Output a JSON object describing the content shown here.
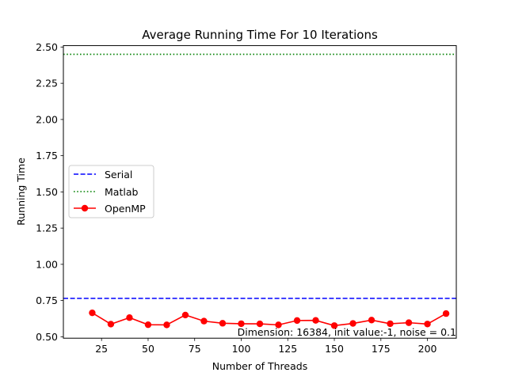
{
  "chart_data": {
    "type": "line",
    "title": "Average Running Time For 10 Iterations",
    "xlabel": "Number of Threads",
    "ylabel": "Running Time",
    "xlim": [
      4.5,
      215.5
    ],
    "ylim": [
      0.49,
      2.51
    ],
    "xticks": [
      25,
      50,
      75,
      100,
      125,
      150,
      175,
      200
    ],
    "xtick_labels": [
      "25",
      "50",
      "75",
      "100",
      "125",
      "150",
      "175",
      "200"
    ],
    "yticks": [
      0.5,
      0.75,
      1.0,
      1.25,
      1.5,
      1.75,
      2.0,
      2.25,
      2.5
    ],
    "ytick_labels": [
      "0.50",
      "0.75",
      "1.00",
      "1.25",
      "1.50",
      "1.75",
      "2.00",
      "2.25",
      "2.50"
    ],
    "grid": false,
    "legend_position": "center-left",
    "series": [
      {
        "name": "Serial",
        "style": "dashed",
        "color": "#0000ff",
        "constant": 0.765
      },
      {
        "name": "Matlab",
        "style": "dotted",
        "color": "#008000",
        "constant": 2.45
      },
      {
        "name": "OpenMP",
        "style": "solid-marker",
        "color": "#ff0000",
        "x": [
          20,
          30,
          40,
          50,
          60,
          70,
          80,
          90,
          100,
          110,
          120,
          130,
          140,
          150,
          160,
          170,
          180,
          190,
          200,
          210
        ],
        "y": [
          0.665,
          0.587,
          0.632,
          0.583,
          0.582,
          0.65,
          0.608,
          0.593,
          0.59,
          0.589,
          0.582,
          0.612,
          0.613,
          0.577,
          0.592,
          0.615,
          0.59,
          0.597,
          0.588,
          0.66
        ]
      }
    ],
    "annotation": "Dimension: 16384, init value:-1, noise = 0.1"
  }
}
